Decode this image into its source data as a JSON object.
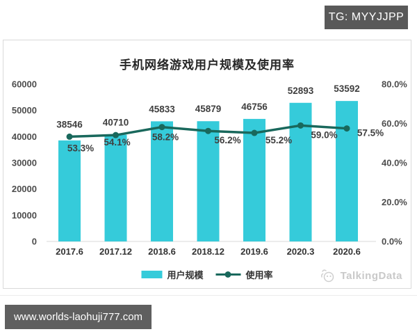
{
  "page": {
    "tg_badge": "TG: MYYJJPP",
    "url_bar": "www.worlds-laohuji777.com",
    "watermark": "TalkingData"
  },
  "chart": {
    "title": "手机网络游戏用户规模及使用率",
    "legend": [
      {
        "label": "用户规模"
      },
      {
        "label": "使用率"
      }
    ]
  },
  "chart_data": {
    "type": "bar",
    "title": "手机网络游戏用户规模及使用率",
    "categories": [
      "2017.6",
      "2017.12",
      "2018.6",
      "2018.12",
      "2019.6",
      "2020.3",
      "2020.6"
    ],
    "series": [
      {
        "name": "用户规模",
        "type": "bar",
        "axis": "left",
        "color": "#35CBDA",
        "values": [
          38546,
          40710,
          45833,
          45879,
          46756,
          52893,
          53592
        ]
      },
      {
        "name": "使用率",
        "type": "line",
        "axis": "right",
        "color": "#19685C",
        "values": [
          53.3,
          54.1,
          58.2,
          56.2,
          55.2,
          59.0,
          57.5
        ],
        "labels": [
          "53.3%",
          "54.1%",
          "58.2%",
          "56.2%",
          "55.2%",
          "59.0%",
          "57.5%"
        ]
      }
    ],
    "left_axis": {
      "min": 0,
      "max": 60000,
      "ticks": [
        "0",
        "10000",
        "20000",
        "30000",
        "40000",
        "50000",
        "60000"
      ]
    },
    "right_axis": {
      "min": 0,
      "max": 80,
      "ticks": [
        "0.0%",
        "20.0%",
        "40.0%",
        "60.0%",
        "80.0%"
      ]
    },
    "grid": false,
    "legend_position": "bottom",
    "label_color": "#3f3f3f",
    "axis_text_color": "#4d4d4d",
    "baseline_color": "#d9d9d9"
  }
}
